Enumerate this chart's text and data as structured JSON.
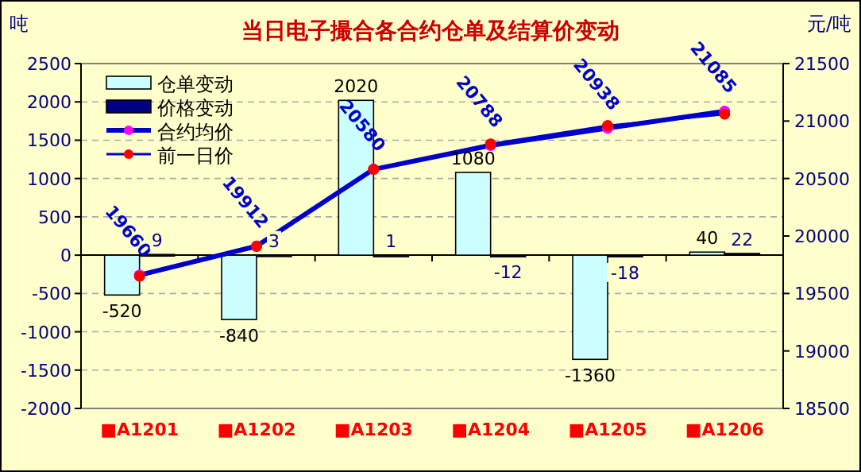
{
  "chart_data": {
    "type": "bar",
    "title": "当日电子撮合各合约仓单及结算价变动",
    "ylabel": "吨",
    "y2label": "元/吨",
    "categories": [
      "■A1201",
      "■A1202",
      "■A1203",
      "■A1204",
      "■A1205",
      "■A1206"
    ],
    "series": [
      {
        "name": "仓单变动",
        "color": "#ccffff",
        "values": [
          -520,
          -840,
          2020,
          1080,
          -1360,
          40
        ],
        "value_labels": [
          "-520",
          "-840",
          "2020",
          "1080",
          "-1360",
          "40"
        ]
      },
      {
        "name": "价格变动",
        "color": "#000080",
        "values": [
          9,
          3,
          1,
          -12,
          -18,
          22
        ],
        "value_labels": [
          "9",
          "3",
          "1",
          "-12",
          "-18",
          "22"
        ]
      },
      {
        "name": "合约均价",
        "type": "line",
        "axis": "y2",
        "color": "#0000cc",
        "colors": [
          "#ff00ff",
          "#ff00ff",
          "#ff00ff",
          "#ff00ff",
          "#ff00ff",
          "#ff00ff"
        ],
        "values": [
          19660,
          19912,
          20580,
          20788,
          20938,
          21085
        ],
        "value_labels": [
          "19660",
          "19912",
          "20580",
          "20788",
          "20938",
          "21085"
        ]
      },
      {
        "name": "前一日价",
        "type": "line",
        "axis": "y2",
        "color": "#0000cc",
        "colors": [
          "#ff0000",
          "#ff0000",
          "#ff0000",
          "#ff0000",
          "#ff0000",
          "#ff0000"
        ],
        "values": [
          19650,
          19910,
          20580,
          20800,
          20960,
          21060
        ]
      }
    ],
    "marker": "circle",
    "ylim": [
      -2000,
      2500
    ],
    "yticks": [
      -2000,
      -1500,
      -1000,
      -500,
      0,
      500,
      1000,
      1500,
      2000,
      2500
    ],
    "y2lim": [
      18500,
      21500
    ],
    "y2ticks": [
      18500,
      19000,
      19500,
      20000,
      20500,
      21000,
      21500
    ],
    "grid": "y",
    "legend": "top left"
  }
}
